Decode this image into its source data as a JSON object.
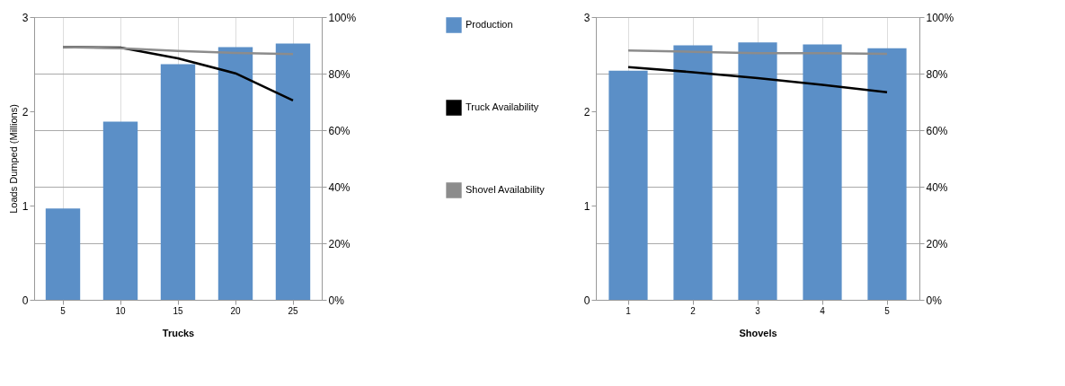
{
  "chart_data": [
    {
      "type": "bar",
      "xlabel": "Trucks",
      "ylabel": "Loads Dumped (Millions)",
      "categories": [
        "5",
        "10",
        "15",
        "20",
        "25"
      ],
      "ylim": [
        0,
        3
      ],
      "yticks": [
        0,
        1,
        2,
        3
      ],
      "y2lim": [
        0,
        100
      ],
      "y2ticks": [
        {
          "value": 0,
          "label": "0%"
        },
        {
          "value": 20,
          "label": "20%"
        },
        {
          "value": 40,
          "label": "40%"
        },
        {
          "value": 60,
          "label": "60%"
        },
        {
          "value": 80,
          "label": "80%"
        },
        {
          "value": 100,
          "label": "100%"
        }
      ],
      "grid": true,
      "legend": "right",
      "series": [
        {
          "name": "Production",
          "color": "#5b8fc7",
          "values": [
            0.97,
            1.89,
            2.5,
            2.68,
            2.72
          ]
        },
        {
          "name": "Truck Availability",
          "type": "line",
          "axis": "y2",
          "color": "#000000",
          "values": [
            89.4,
            89.2,
            85.4,
            80.1,
            70.5
          ]
        },
        {
          "name": "Shovel Availability",
          "type": "line",
          "axis": "y2",
          "color": "#8c8c8c",
          "values": [
            89.4,
            89.0,
            88.0,
            87.3,
            86.9
          ]
        }
      ]
    },
    {
      "type": "bar",
      "xlabel": "Shovels",
      "categories": [
        "1",
        "2",
        "3",
        "4",
        "5"
      ],
      "ylim": [
        0,
        3
      ],
      "yticks": [
        0,
        1,
        2,
        3
      ],
      "y2lim": [
        0,
        100
      ],
      "y2ticks": [
        {
          "value": 0,
          "label": "0%"
        },
        {
          "value": 20,
          "label": "20%"
        },
        {
          "value": 40,
          "label": "40%"
        },
        {
          "value": 60,
          "label": "60%"
        },
        {
          "value": 80,
          "label": "80%"
        },
        {
          "value": 100,
          "label": "100%"
        }
      ],
      "grid": true,
      "series": [
        {
          "color": "#5b8fc7",
          "values": [
            2.43,
            2.7,
            2.73,
            2.71,
            2.67
          ]
        },
        {
          "type": "line",
          "axis": "y2",
          "color": "#000000",
          "values": [
            82.3,
            80.5,
            78.4,
            76.0,
            73.4
          ]
        },
        {
          "type": "line",
          "axis": "y2",
          "color": "#8c8c8c",
          "values": [
            88.2,
            87.7,
            87.2,
            87.2,
            87.0
          ]
        }
      ]
    }
  ]
}
